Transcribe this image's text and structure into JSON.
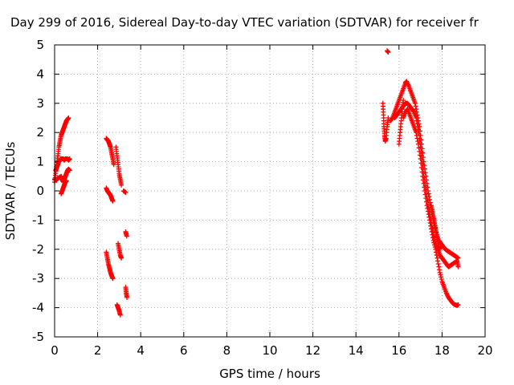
{
  "chart_data": {
    "type": "scatter",
    "title": "Day 299 of 2016, Sidereal Day-to-day VTEC variation (SDTVAR) for receiver fr",
    "xlabel": "GPS time / hours",
    "ylabel": "SDTVAR / TECUs",
    "xlim": [
      0,
      20
    ],
    "ylim": [
      -5,
      5
    ],
    "x_ticks": [
      0,
      2,
      4,
      6,
      8,
      10,
      12,
      14,
      16,
      18,
      20
    ],
    "y_ticks": [
      -5,
      -4,
      -3,
      -2,
      -1,
      0,
      1,
      2,
      3,
      4,
      5
    ],
    "grid": true,
    "marker": "+",
    "series_color": "#ff0000",
    "series": [
      {
        "name": "SDTVAR",
        "segments": [
          [
            [
              0.0,
              0.3
            ],
            [
              0.05,
              0.6
            ],
            [
              0.1,
              0.9
            ],
            [
              0.15,
              1.2
            ],
            [
              0.2,
              1.5
            ],
            [
              0.25,
              1.7
            ],
            [
              0.3,
              1.9
            ],
            [
              0.35,
              2.0
            ],
            [
              0.4,
              2.1
            ],
            [
              0.45,
              2.2
            ],
            [
              0.5,
              2.3
            ],
            [
              0.55,
              2.4
            ],
            [
              0.6,
              2.45
            ],
            [
              0.65,
              2.5
            ]
          ],
          [
            [
              0.05,
              0.7
            ],
            [
              0.1,
              0.8
            ],
            [
              0.15,
              0.9
            ],
            [
              0.2,
              1.0
            ],
            [
              0.25,
              1.05
            ],
            [
              0.3,
              1.1
            ],
            [
              0.35,
              1.1
            ],
            [
              0.4,
              1.1
            ],
            [
              0.45,
              1.05
            ],
            [
              0.5,
              1.1
            ],
            [
              0.55,
              1.1
            ],
            [
              0.6,
              1.1
            ],
            [
              0.65,
              1.05
            ],
            [
              0.7,
              1.1
            ]
          ],
          [
            [
              0.0,
              0.4
            ],
            [
              0.1,
              0.4
            ],
            [
              0.2,
              0.45
            ],
            [
              0.3,
              0.5
            ],
            [
              0.35,
              0.4
            ],
            [
              0.4,
              0.3
            ],
            [
              0.45,
              0.35
            ],
            [
              0.5,
              0.5
            ],
            [
              0.55,
              0.6
            ],
            [
              0.6,
              0.7
            ],
            [
              0.65,
              0.75
            ],
            [
              0.7,
              0.7
            ]
          ],
          [
            [
              0.3,
              -0.1
            ],
            [
              0.35,
              0.0
            ],
            [
              0.4,
              0.1
            ],
            [
              0.45,
              0.2
            ],
            [
              0.5,
              0.3
            ],
            [
              0.55,
              0.35
            ]
          ],
          [
            [
              2.4,
              1.8
            ],
            [
              2.45,
              1.75
            ],
            [
              2.5,
              1.7
            ],
            [
              2.55,
              1.6
            ],
            [
              2.6,
              1.5
            ],
            [
              2.65,
              1.3
            ],
            [
              2.7,
              1.1
            ],
            [
              2.75,
              0.9
            ]
          ],
          [
            [
              2.85,
              1.5
            ],
            [
              2.9,
              1.2
            ],
            [
              2.95,
              0.9
            ],
            [
              3.0,
              0.6
            ],
            [
              3.05,
              0.4
            ],
            [
              3.1,
              0.2
            ]
          ],
          [
            [
              2.4,
              0.1
            ],
            [
              2.45,
              0.0
            ],
            [
              2.5,
              -0.05
            ],
            [
              2.55,
              -0.1
            ],
            [
              2.6,
              -0.15
            ],
            [
              2.65,
              -0.25
            ],
            [
              2.7,
              -0.35
            ]
          ],
          [
            [
              3.2,
              0.0
            ],
            [
              3.3,
              -0.05
            ]
          ],
          [
            [
              2.4,
              -2.1
            ],
            [
              2.45,
              -2.3
            ],
            [
              2.5,
              -2.5
            ],
            [
              2.55,
              -2.65
            ],
            [
              2.6,
              -2.8
            ],
            [
              2.65,
              -2.9
            ],
            [
              2.7,
              -3.0
            ]
          ],
          [
            [
              2.95,
              -1.8
            ],
            [
              3.0,
              -2.0
            ],
            [
              3.05,
              -2.2
            ],
            [
              3.1,
              -2.3
            ]
          ],
          [
            [
              3.3,
              -1.4
            ],
            [
              3.35,
              -1.55
            ]
          ],
          [
            [
              3.3,
              -3.3
            ],
            [
              3.33,
              -3.5
            ],
            [
              3.36,
              -3.65
            ]
          ],
          [
            [
              2.9,
              -3.9
            ],
            [
              2.95,
              -4.0
            ],
            [
              3.0,
              -4.1
            ],
            [
              3.05,
              -4.25
            ]
          ],
          [
            [
              15.25,
              3.0
            ],
            [
              15.28,
              2.6
            ],
            [
              15.3,
              2.2
            ],
            [
              15.33,
              1.9
            ],
            [
              15.36,
              1.7
            ],
            [
              15.4,
              1.8
            ],
            [
              15.45,
              2.2
            ],
            [
              15.5,
              2.5
            ]
          ],
          [
            [
              15.45,
              4.8
            ],
            [
              15.5,
              4.75
            ]
          ],
          [
            [
              15.6,
              2.4
            ],
            [
              15.7,
              2.5
            ],
            [
              15.8,
              2.7
            ],
            [
              15.9,
              2.9
            ],
            [
              16.0,
              3.1
            ],
            [
              16.1,
              3.3
            ],
            [
              16.2,
              3.5
            ],
            [
              16.3,
              3.7
            ],
            [
              16.35,
              3.75
            ],
            [
              16.45,
              3.6
            ],
            [
              16.55,
              3.4
            ],
            [
              16.65,
              3.2
            ],
            [
              16.75,
              3.0
            ],
            [
              16.85,
              2.6
            ],
            [
              16.95,
              2.2
            ],
            [
              17.05,
              1.6
            ],
            [
              17.15,
              1.0
            ],
            [
              17.25,
              0.5
            ],
            [
              17.35,
              0.0
            ],
            [
              17.45,
              -0.4
            ],
            [
              17.55,
              -0.8
            ],
            [
              17.65,
              -1.2
            ],
            [
              17.75,
              -1.5
            ],
            [
              17.85,
              -1.7
            ],
            [
              17.95,
              -1.8
            ],
            [
              18.05,
              -1.9
            ],
            [
              18.15,
              -2.0
            ],
            [
              18.25,
              -2.05
            ],
            [
              18.35,
              -2.1
            ],
            [
              18.45,
              -2.15
            ],
            [
              18.55,
              -2.2
            ],
            [
              18.65,
              -2.25
            ],
            [
              18.75,
              -2.3
            ]
          ],
          [
            [
              15.8,
              2.5
            ],
            [
              15.9,
              2.6
            ],
            [
              16.0,
              2.7
            ],
            [
              16.1,
              2.8
            ],
            [
              16.2,
              2.9
            ],
            [
              16.3,
              3.0
            ],
            [
              16.4,
              3.0
            ],
            [
              16.5,
              2.9
            ],
            [
              16.6,
              2.8
            ],
            [
              16.7,
              2.7
            ],
            [
              16.8,
              2.5
            ],
            [
              16.9,
              2.1
            ],
            [
              17.0,
              1.5
            ],
            [
              17.1,
              0.9
            ],
            [
              17.2,
              0.3
            ],
            [
              17.3,
              -0.2
            ],
            [
              17.4,
              -0.7
            ],
            [
              17.5,
              -1.1
            ],
            [
              17.6,
              -1.5
            ],
            [
              17.7,
              -1.8
            ],
            [
              17.8,
              -2.0
            ],
            [
              17.9,
              -2.2
            ],
            [
              18.0,
              -2.3
            ],
            [
              18.1,
              -2.4
            ],
            [
              18.2,
              -2.5
            ],
            [
              18.3,
              -2.6
            ],
            [
              18.4,
              -2.55
            ],
            [
              18.5,
              -2.5
            ],
            [
              18.6,
              -2.45
            ],
            [
              18.7,
              -2.4
            ],
            [
              18.75,
              -2.6
            ]
          ],
          [
            [
              16.2,
              2.5
            ],
            [
              16.3,
              2.7
            ],
            [
              16.4,
              2.8
            ],
            [
              16.5,
              2.6
            ],
            [
              16.6,
              2.4
            ],
            [
              16.7,
              2.2
            ],
            [
              16.8,
              2.0
            ],
            [
              16.9,
              1.6
            ],
            [
              17.0,
              1.1
            ],
            [
              17.1,
              0.5
            ],
            [
              17.2,
              0.0
            ],
            [
              17.3,
              -0.5
            ],
            [
              17.4,
              -0.9
            ],
            [
              17.5,
              -1.3
            ],
            [
              17.6,
              -1.7
            ],
            [
              17.7,
              -2.0
            ],
            [
              17.8,
              -2.4
            ],
            [
              17.9,
              -2.8
            ],
            [
              18.0,
              -3.1
            ],
            [
              18.1,
              -3.3
            ],
            [
              18.2,
              -3.5
            ],
            [
              18.3,
              -3.65
            ],
            [
              18.4,
              -3.75
            ],
            [
              18.5,
              -3.85
            ],
            [
              18.6,
              -3.9
            ],
            [
              18.7,
              -3.92
            ],
            [
              18.75,
              -3.9
            ]
          ],
          [
            [
              17.5,
              -0.5
            ],
            [
              17.55,
              -0.7
            ],
            [
              17.6,
              -0.9
            ],
            [
              17.65,
              -1.1
            ],
            [
              17.7,
              -1.3
            ],
            [
              17.75,
              -1.5
            ],
            [
              17.8,
              -1.7
            ],
            [
              17.85,
              -1.9
            ],
            [
              17.9,
              -2.0
            ]
          ],
          [
            [
              16.0,
              1.6
            ],
            [
              16.05,
              2.0
            ],
            [
              16.1,
              2.4
            ],
            [
              16.15,
              2.8
            ],
            [
              16.2,
              3.1
            ]
          ]
        ]
      }
    ]
  }
}
